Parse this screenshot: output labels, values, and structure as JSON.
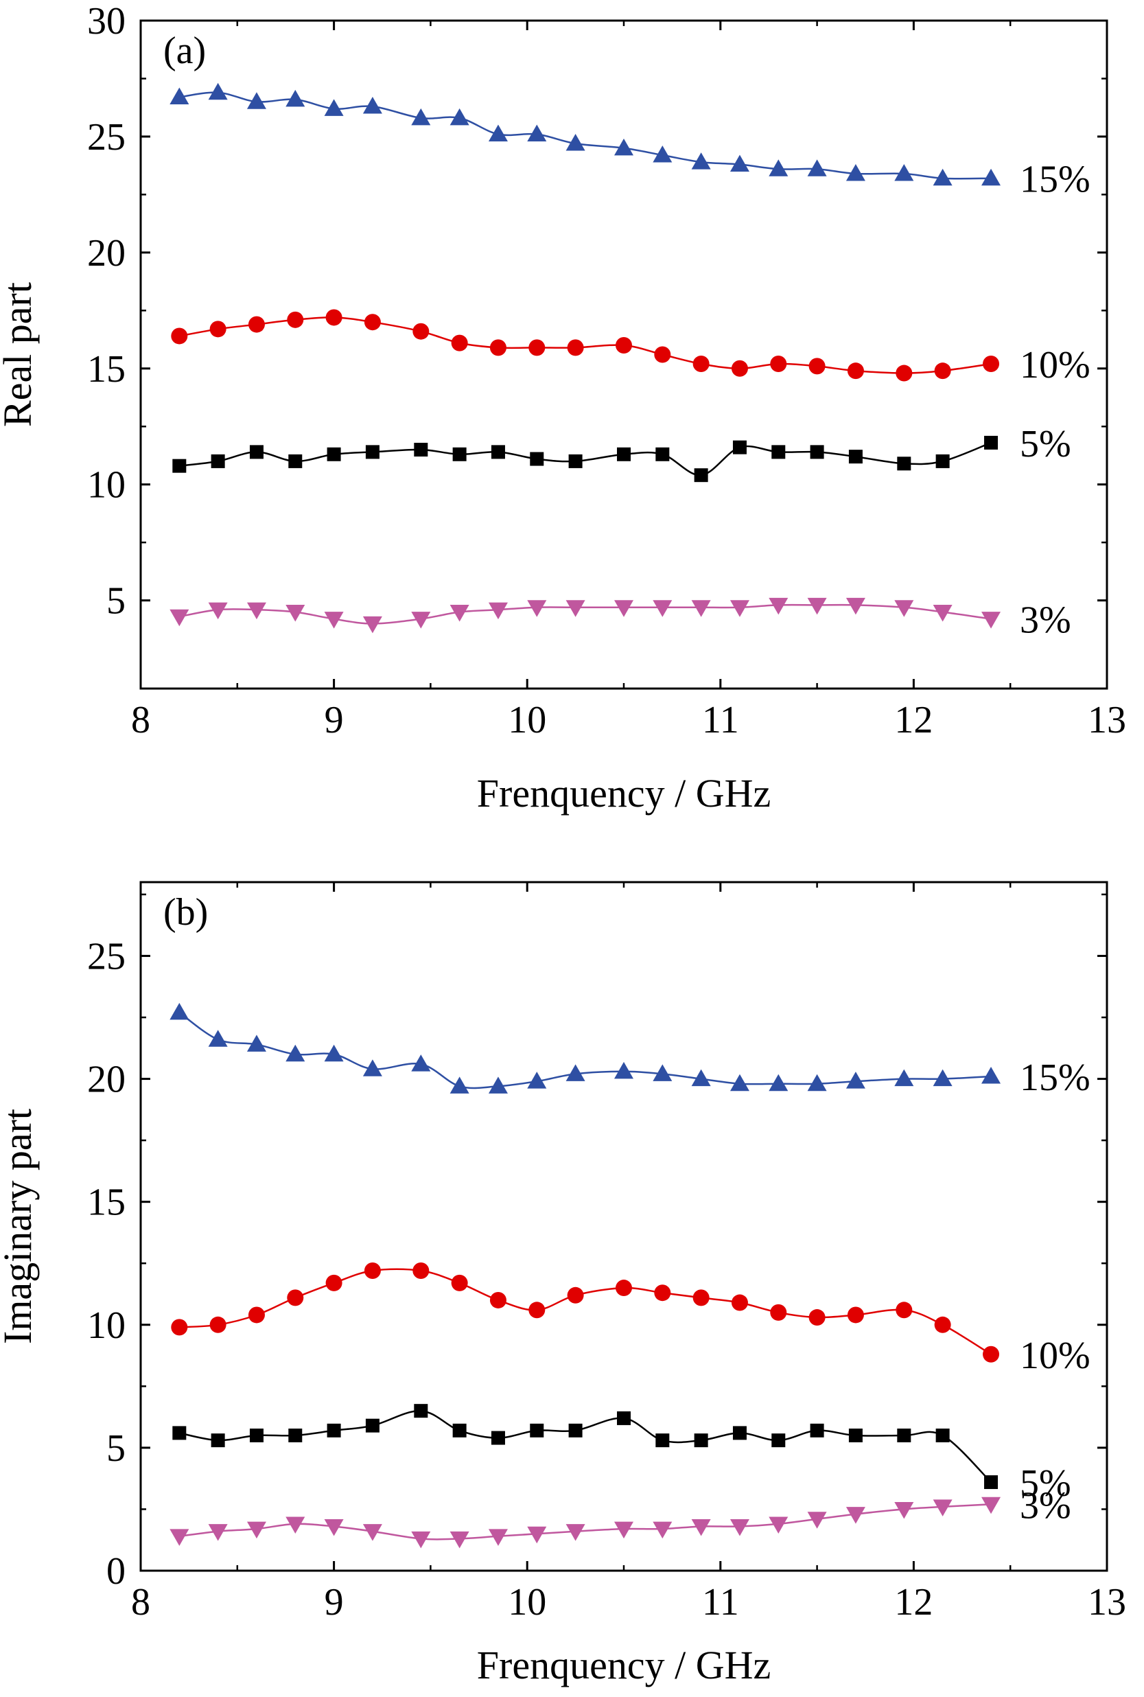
{
  "chart_data": [
    {
      "type": "line",
      "panel_label": "(a)",
      "xlabel": "Frenquency / GHz",
      "ylabel": "Real part",
      "xlim": [
        8,
        13
      ],
      "ylim": [
        1.2,
        30
      ],
      "xticks": [
        8,
        9,
        10,
        11,
        12,
        13
      ],
      "yticks": [
        5,
        10,
        15,
        20,
        25,
        30
      ],
      "grid": false,
      "legend": "none",
      "x": [
        8.2,
        8.4,
        8.6,
        8.8,
        9.0,
        9.2,
        9.45,
        9.65,
        9.85,
        10.05,
        10.25,
        10.5,
        10.7,
        10.9,
        11.1,
        11.3,
        11.5,
        11.7,
        11.95,
        12.15,
        12.4
      ],
      "series": [
        {
          "name": "15%",
          "color": "#2e4fa3",
          "marker": "triangle-up",
          "values": [
            26.7,
            26.9,
            26.5,
            26.6,
            26.2,
            26.3,
            25.8,
            25.8,
            25.1,
            25.1,
            24.7,
            24.5,
            24.2,
            23.9,
            23.8,
            23.6,
            23.6,
            23.4,
            23.4,
            23.2,
            23.2
          ]
        },
        {
          "name": "10%",
          "color": "#e00000",
          "marker": "circle",
          "values": [
            16.4,
            16.7,
            16.9,
            17.1,
            17.2,
            17.0,
            16.6,
            16.1,
            15.9,
            15.9,
            15.9,
            16.0,
            15.6,
            15.2,
            15.0,
            15.2,
            15.1,
            14.9,
            14.8,
            14.9,
            15.2
          ]
        },
        {
          "name": "5%",
          "color": "#000000",
          "marker": "square",
          "values": [
            10.8,
            11.0,
            11.4,
            11.0,
            11.3,
            11.4,
            11.5,
            11.3,
            11.4,
            11.1,
            11.0,
            11.3,
            11.3,
            10.4,
            11.6,
            11.4,
            11.4,
            11.2,
            10.9,
            11.0,
            11.8
          ]
        },
        {
          "name": "3%",
          "color": "#c0579e",
          "marker": "triangle-down",
          "values": [
            4.3,
            4.6,
            4.6,
            4.5,
            4.2,
            4.0,
            4.2,
            4.5,
            4.6,
            4.7,
            4.7,
            4.7,
            4.7,
            4.7,
            4.7,
            4.8,
            4.8,
            4.8,
            4.7,
            4.5,
            4.2
          ]
        }
      ]
    },
    {
      "type": "line",
      "panel_label": "(b)",
      "xlabel": "Frenquency / GHz",
      "ylabel": "Imaginary part",
      "xlim": [
        8,
        13
      ],
      "ylim": [
        0,
        28
      ],
      "xticks": [
        8,
        9,
        10,
        11,
        12,
        13
      ],
      "yticks": [
        0,
        5,
        10,
        15,
        20,
        25
      ],
      "grid": false,
      "legend": "none",
      "x": [
        8.2,
        8.4,
        8.6,
        8.8,
        9.0,
        9.2,
        9.45,
        9.65,
        9.85,
        10.05,
        10.25,
        10.5,
        10.7,
        10.9,
        11.1,
        11.3,
        11.5,
        11.7,
        11.95,
        12.15,
        12.4
      ],
      "series": [
        {
          "name": "15%",
          "color": "#2e4fa3",
          "marker": "triangle-up",
          "values": [
            22.7,
            21.6,
            21.4,
            21.0,
            21.0,
            20.4,
            20.6,
            19.7,
            19.7,
            19.9,
            20.2,
            20.3,
            20.2,
            20.0,
            19.8,
            19.8,
            19.8,
            19.9,
            20.0,
            20.0,
            20.1
          ]
        },
        {
          "name": "10%",
          "color": "#e00000",
          "marker": "circle",
          "values": [
            9.9,
            10.0,
            10.4,
            11.1,
            11.7,
            12.2,
            12.2,
            11.7,
            11.0,
            10.6,
            11.2,
            11.5,
            11.3,
            11.1,
            10.9,
            10.5,
            10.3,
            10.4,
            10.6,
            10.0,
            8.8
          ]
        },
        {
          "name": "5%",
          "color": "#000000",
          "marker": "square",
          "values": [
            5.6,
            5.3,
            5.5,
            5.5,
            5.7,
            5.9,
            6.5,
            5.7,
            5.4,
            5.7,
            5.7,
            6.2,
            5.3,
            5.3,
            5.6,
            5.3,
            5.7,
            5.5,
            5.5,
            5.5,
            3.6
          ]
        },
        {
          "name": "3%",
          "color": "#c0579e",
          "marker": "triangle-down",
          "values": [
            1.4,
            1.6,
            1.7,
            1.9,
            1.8,
            1.6,
            1.3,
            1.3,
            1.4,
            1.5,
            1.6,
            1.7,
            1.7,
            1.8,
            1.8,
            1.9,
            2.1,
            2.3,
            2.5,
            2.6,
            2.7
          ]
        }
      ]
    }
  ]
}
